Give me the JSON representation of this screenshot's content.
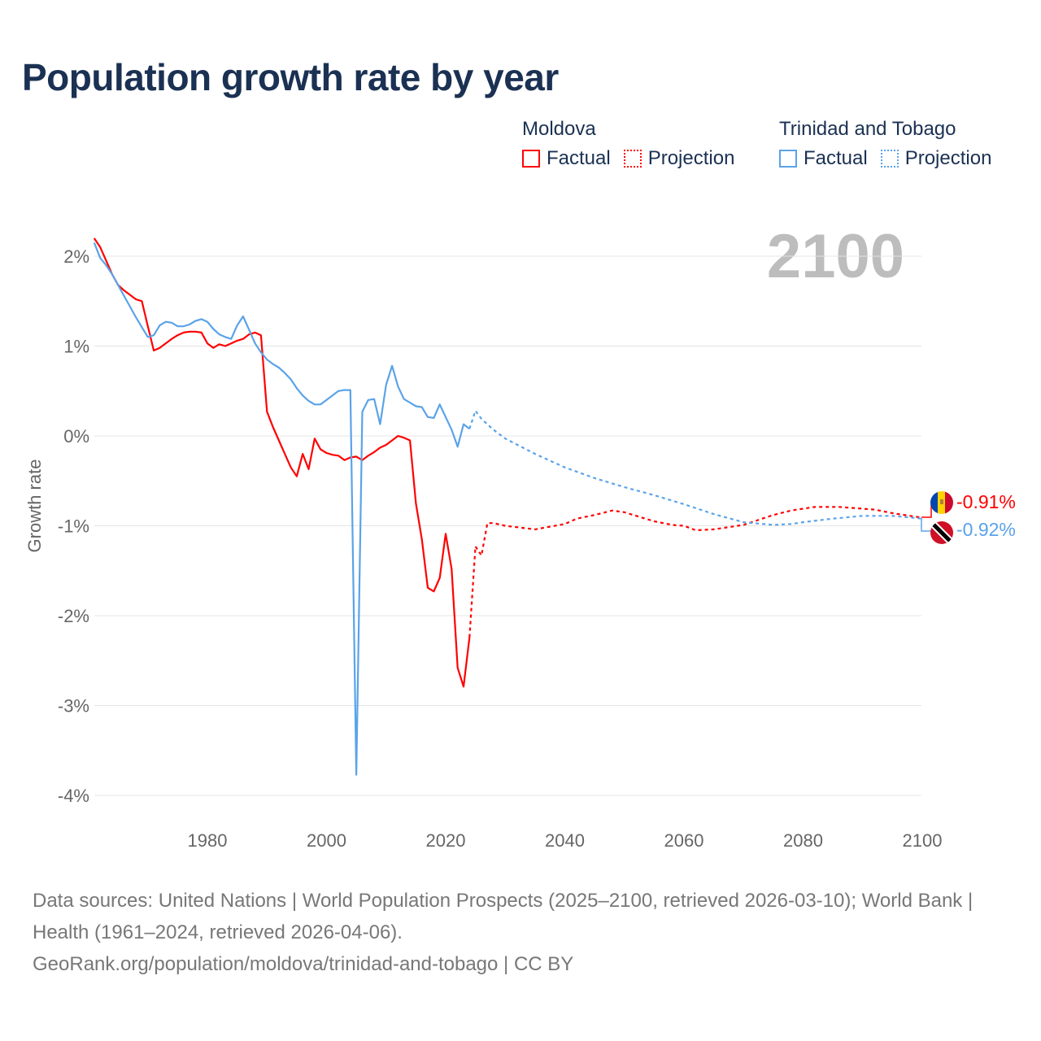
{
  "title": "Population growth rate by year",
  "year_label": "2100",
  "legend": {
    "groups": [
      {
        "name": "Moldova",
        "factual": "Factual",
        "projection": "Projection",
        "color": "#ff0000"
      },
      {
        "name": "Trinidad and Tobago",
        "factual": "Factual",
        "projection": "Projection",
        "color": "#5ba3e8"
      }
    ]
  },
  "end_labels": {
    "moldova": "-0.91%",
    "trinidad": "-0.92%"
  },
  "footer": {
    "sources": "Data sources: United Nations | World Population Prospects (2025–2100, retrieved 2026-03-10); World Bank | Health (1961–2024, retrieved 2026-04-06).",
    "url": "GeoRank.org/population/moldova/trinidad-and-tobago | CC BY"
  },
  "chart_data": {
    "type": "line",
    "title": "Population growth rate by year",
    "xlabel": "",
    "ylabel": "Growth rate",
    "xlim": [
      1961,
      2100
    ],
    "ylim": [
      -4.3,
      2.3
    ],
    "x_ticks": [
      1980,
      2000,
      2020,
      2040,
      2060,
      2080,
      2100
    ],
    "x_tick_labels": [
      "1980",
      "2000",
      "2020",
      "2040",
      "2060",
      "2080",
      "2100"
    ],
    "y_ticks": [
      2,
      1,
      0,
      -1,
      -2,
      -3,
      -4
    ],
    "y_tick_labels": [
      "2%",
      "1%",
      "0%",
      "-1%",
      "-2%",
      "-3%",
      "-4%"
    ],
    "grid": true,
    "legend_position": "top-right",
    "series": [
      {
        "name": "Moldova Factual",
        "color": "#ff0000",
        "style": "solid",
        "x": [
          1961,
          1962,
          1963,
          1964,
          1965,
          1966,
          1967,
          1968,
          1969,
          1970,
          1971,
          1972,
          1973,
          1974,
          1975,
          1976,
          1977,
          1978,
          1979,
          1980,
          1981,
          1982,
          1983,
          1984,
          1985,
          1986,
          1987,
          1988,
          1989,
          1990,
          1991,
          1992,
          1993,
          1994,
          1995,
          1996,
          1997,
          1998,
          1999,
          2000,
          2001,
          2002,
          2003,
          2004,
          2005,
          2006,
          2007,
          2008,
          2009,
          2010,
          2011,
          2012,
          2013,
          2014,
          2015,
          2016,
          2017,
          2018,
          2019,
          2020,
          2021,
          2022,
          2023,
          2024
        ],
        "y": [
          2.2,
          2.1,
          1.95,
          1.8,
          1.68,
          1.62,
          1.57,
          1.52,
          1.5,
          1.22,
          0.95,
          0.98,
          1.03,
          1.08,
          1.12,
          1.15,
          1.16,
          1.16,
          1.15,
          1.03,
          0.98,
          1.02,
          1.0,
          1.03,
          1.06,
          1.08,
          1.13,
          1.15,
          1.12,
          0.27,
          0.1,
          -0.05,
          -0.2,
          -0.35,
          -0.45,
          -0.2,
          -0.37,
          -0.03,
          -0.15,
          -0.19,
          -0.21,
          -0.22,
          -0.27,
          -0.24,
          -0.23,
          -0.27,
          -0.22,
          -0.18,
          -0.13,
          -0.1,
          -0.05,
          0.0,
          -0.02,
          -0.05,
          -0.75,
          -1.15,
          -1.69,
          -1.73,
          -1.58,
          -1.09,
          -1.48,
          -2.58,
          -2.79,
          -2.24
        ]
      },
      {
        "name": "Moldova Projection",
        "color": "#ff0000",
        "style": "dotted",
        "x": [
          2024,
          2025,
          2026,
          2027,
          2028,
          2030,
          2035,
          2040,
          2042,
          2045,
          2048,
          2050,
          2055,
          2058,
          2060,
          2062,
          2065,
          2070,
          2075,
          2078,
          2082,
          2086,
          2092,
          2095,
          2100
        ],
        "y": [
          -2.24,
          -1.23,
          -1.33,
          -0.97,
          -0.97,
          -1.0,
          -1.04,
          -0.98,
          -0.92,
          -0.88,
          -0.83,
          -0.85,
          -0.95,
          -0.99,
          -1.0,
          -1.05,
          -1.04,
          -0.99,
          -0.88,
          -0.83,
          -0.79,
          -0.79,
          -0.82,
          -0.86,
          -0.91
        ]
      },
      {
        "name": "Trinidad and Tobago Factual",
        "color": "#5ba3e8",
        "style": "solid",
        "x": [
          1961,
          1962,
          1963,
          1964,
          1965,
          1966,
          1967,
          1968,
          1969,
          1970,
          1971,
          1972,
          1973,
          1974,
          1975,
          1976,
          1977,
          1978,
          1979,
          1980,
          1981,
          1982,
          1983,
          1984,
          1985,
          1986,
          1987,
          1988,
          1989,
          1990,
          1991,
          1992,
          1993,
          1994,
          1995,
          1996,
          1997,
          1998,
          1999,
          2000,
          2001,
          2002,
          2003,
          2004,
          2005,
          2006,
          2007,
          2008,
          2009,
          2010,
          2011,
          2012,
          2013,
          2014,
          2015,
          2016,
          2017,
          2018,
          2019,
          2020,
          2021,
          2022,
          2023,
          2024
        ],
        "y": [
          2.15,
          1.98,
          1.9,
          1.8,
          1.68,
          1.56,
          1.44,
          1.32,
          1.21,
          1.1,
          1.12,
          1.23,
          1.27,
          1.26,
          1.22,
          1.22,
          1.24,
          1.28,
          1.3,
          1.27,
          1.19,
          1.13,
          1.1,
          1.08,
          1.23,
          1.33,
          1.18,
          1.03,
          0.93,
          0.85,
          0.8,
          0.76,
          0.7,
          0.63,
          0.53,
          0.45,
          0.39,
          0.35,
          0.35,
          0.4,
          0.45,
          0.5,
          0.51,
          0.51,
          -3.77,
          0.27,
          0.4,
          0.41,
          0.13,
          0.57,
          0.78,
          0.55,
          0.41,
          0.37,
          0.33,
          0.32,
          0.21,
          0.2,
          0.35,
          0.21,
          0.07,
          -0.12,
          0.13,
          0.08
        ]
      },
      {
        "name": "Trinidad and Tobago Projection",
        "color": "#5ba3e8",
        "style": "dotted",
        "x": [
          2024,
          2025,
          2026,
          2028,
          2030,
          2035,
          2040,
          2045,
          2050,
          2055,
          2060,
          2065,
          2070,
          2075,
          2078,
          2080,
          2085,
          2090,
          2095,
          2100
        ],
        "y": [
          0.08,
          0.28,
          0.19,
          0.07,
          -0.03,
          -0.2,
          -0.35,
          -0.47,
          -0.57,
          -0.66,
          -0.76,
          -0.87,
          -0.96,
          -0.99,
          -0.98,
          -0.96,
          -0.92,
          -0.89,
          -0.89,
          -0.92
        ]
      }
    ]
  }
}
